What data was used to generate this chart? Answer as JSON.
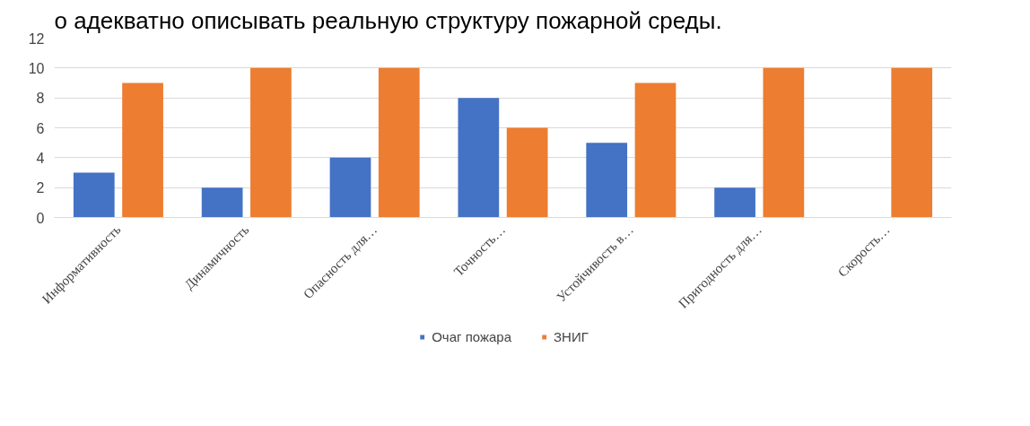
{
  "chart_data": {
    "type": "bar",
    "annotations": [
      "о адекватно описывать реальную структуру пожарной среды."
    ],
    "categories": [
      "Информативность",
      "Динамичность",
      "Опасность для…",
      "Точность…",
      "Устойчивость в…",
      "Пригодность для…",
      "Скорость…"
    ],
    "series": [
      {
        "name": "Очаг пожара",
        "color": "#4472c4",
        "values": [
          3,
          2,
          4,
          8,
          5,
          2,
          0
        ]
      },
      {
        "name": "ЗНИГ",
        "color": "#ed7d31",
        "values": [
          9,
          10,
          10,
          6,
          9,
          10,
          10
        ]
      }
    ],
    "ylim": [
      0,
      12
    ],
    "yticks": [
      0,
      2,
      4,
      6,
      8,
      10,
      12
    ],
    "grid": "y",
    "legend": "bottom"
  }
}
